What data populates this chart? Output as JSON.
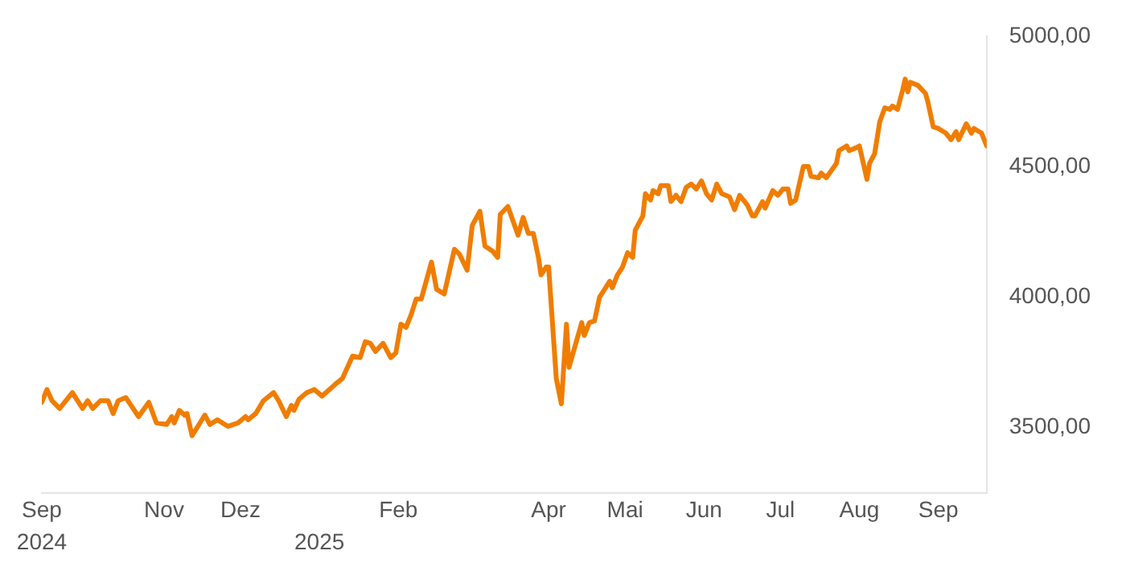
{
  "chart_data": {
    "type": "line",
    "x": [
      "2024-09-14",
      "2024-09-16",
      "2024-09-18",
      "2024-09-21",
      "2024-09-26",
      "2024-09-30",
      "2024-10-02",
      "2024-10-04",
      "2024-10-07",
      "2024-10-10",
      "2024-10-12",
      "2024-10-14",
      "2024-10-17",
      "2024-10-22",
      "2024-10-26",
      "2024-10-29",
      "2024-11-02",
      "2024-11-04",
      "2024-11-05",
      "2024-11-07",
      "2024-11-09",
      "2024-11-10",
      "2024-11-12",
      "2024-11-17",
      "2024-11-19",
      "2024-11-22",
      "2024-11-26",
      "2024-11-30",
      "2024-12-03",
      "2024-12-04",
      "2024-12-07",
      "2024-12-10",
      "2024-12-14",
      "2024-12-16",
      "2024-12-19",
      "2024-12-21",
      "2024-12-22",
      "2024-12-24",
      "2024-12-27",
      "2024-12-30",
      "2025-01-02",
      "2025-01-07",
      "2025-01-10",
      "2025-01-14",
      "2025-01-17",
      "2025-01-19",
      "2025-01-21",
      "2025-01-23",
      "2025-01-26",
      "2025-01-29",
      "2025-01-31",
      "2025-02-02",
      "2025-02-04",
      "2025-02-06",
      "2025-02-08",
      "2025-02-10",
      "2025-02-14",
      "2025-02-16",
      "2025-02-19",
      "2025-02-23",
      "2025-02-25",
      "2025-02-28",
      "2025-03-02",
      "2025-03-05",
      "2025-03-07",
      "2025-03-10",
      "2025-03-12",
      "2025-03-13",
      "2025-03-16",
      "2025-03-20",
      "2025-03-22",
      "2025-03-24",
      "2025-03-26",
      "2025-03-28",
      "2025-03-29",
      "2025-03-31",
      "2025-04-01",
      "2025-04-04",
      "2025-04-06",
      "2025-04-08",
      "2025-04-09",
      "2025-04-14",
      "2025-04-15",
      "2025-04-17",
      "2025-04-19",
      "2025-04-21",
      "2025-04-23",
      "2025-04-25",
      "2025-04-26",
      "2025-04-28",
      "2025-04-30",
      "2025-05-02",
      "2025-05-04",
      "2025-05-05",
      "2025-05-08",
      "2025-05-09",
      "2025-05-11",
      "2025-05-12",
      "2025-05-14",
      "2025-05-15",
      "2025-05-18",
      "2025-05-19",
      "2025-05-21",
      "2025-05-23",
      "2025-05-25",
      "2025-05-27",
      "2025-05-29",
      "2025-05-31",
      "2025-06-02",
      "2025-06-04",
      "2025-06-06",
      "2025-06-08",
      "2025-06-11",
      "2025-06-13",
      "2025-06-15",
      "2025-06-18",
      "2025-06-20",
      "2025-06-21",
      "2025-06-24",
      "2025-06-25",
      "2025-06-28",
      "2025-06-30",
      "2025-07-02",
      "2025-07-04",
      "2025-07-05",
      "2025-07-07",
      "2025-07-10",
      "2025-07-12",
      "2025-07-13",
      "2025-07-16",
      "2025-07-17",
      "2025-07-19",
      "2025-07-23",
      "2025-07-24",
      "2025-07-27",
      "2025-07-28",
      "2025-07-31",
      "2025-08-01",
      "2025-08-04",
      "2025-08-05",
      "2025-08-07",
      "2025-08-09",
      "2025-08-11",
      "2025-08-13",
      "2025-08-14",
      "2025-08-16",
      "2025-08-18",
      "2025-08-19",
      "2025-08-20",
      "2025-08-21",
      "2025-08-24",
      "2025-08-27",
      "2025-08-28",
      "2025-08-30",
      "2025-09-01",
      "2025-09-04",
      "2025-09-06",
      "2025-09-08",
      "2025-09-09",
      "2025-09-12",
      "2025-09-14",
      "2025-09-15",
      "2025-09-18",
      "2025-09-20"
    ],
    "series": [
      {
        "color": "#f07d00",
        "values": [
          3597,
          3646,
          3603,
          3573,
          3634,
          3573,
          3603,
          3573,
          3603,
          3603,
          3554,
          3603,
          3615,
          3542,
          3597,
          3518,
          3512,
          3542,
          3518,
          3566,
          3548,
          3554,
          3469,
          3548,
          3512,
          3530,
          3505,
          3518,
          3542,
          3530,
          3554,
          3603,
          3634,
          3603,
          3542,
          3585,
          3566,
          3609,
          3634,
          3646,
          3621,
          3664,
          3688,
          3774,
          3768,
          3829,
          3823,
          3792,
          3823,
          3768,
          3786,
          3896,
          3884,
          3932,
          3993,
          3993,
          4134,
          4030,
          4012,
          4183,
          4164,
          4103,
          4274,
          4329,
          4195,
          4176,
          4152,
          4317,
          4347,
          4237,
          4305,
          4244,
          4244,
          4152,
          4085,
          4115,
          4115,
          3688,
          3591,
          3896,
          3731,
          3902,
          3853,
          3902,
          3908,
          4000,
          4030,
          4061,
          4036,
          4085,
          4115,
          4170,
          4152,
          4256,
          4311,
          4396,
          4372,
          4408,
          4396,
          4427,
          4427,
          4366,
          4390,
          4366,
          4420,
          4433,
          4414,
          4445,
          4396,
          4372,
          4433,
          4396,
          4384,
          4335,
          4390,
          4353,
          4311,
          4311,
          4366,
          4341,
          4408,
          4390,
          4414,
          4414,
          4359,
          4372,
          4500,
          4500,
          4463,
          4457,
          4475,
          4457,
          4512,
          4561,
          4579,
          4561,
          4573,
          4579,
          4451,
          4512,
          4549,
          4671,
          4725,
          4719,
          4732,
          4719,
          4793,
          4835,
          4786,
          4823,
          4811,
          4780,
          4744,
          4652,
          4646,
          4628,
          4603,
          4634,
          4603,
          4664,
          4628,
          4646,
          4628,
          4579
        ]
      }
    ],
    "xlim": [
      "2024-09-14",
      "2025-09-20"
    ],
    "xticks": [
      {
        "value": "2024-09-14",
        "label": "Sep"
      },
      {
        "value": "2024-11-01",
        "label": "Nov"
      },
      {
        "value": "2024-12-01",
        "label": "Dez"
      },
      {
        "value": "2025-02-01",
        "label": "Feb"
      },
      {
        "value": "2025-04-01",
        "label": "Apr"
      },
      {
        "value": "2025-05-01",
        "label": "Mai"
      },
      {
        "value": "2025-06-01",
        "label": "Jun"
      },
      {
        "value": "2025-07-01",
        "label": "Jul"
      },
      {
        "value": "2025-08-01",
        "label": "Aug"
      },
      {
        "value": "2025-09-01",
        "label": "Sep"
      }
    ],
    "x2lim": [
      "2024-09-14",
      "2025-09-20"
    ],
    "x2ticks": [
      {
        "value": "2024-09-14",
        "label": "2024"
      },
      {
        "value": "2025-01-01",
        "label": "2025"
      }
    ],
    "ylim": [
      3250,
      5000
    ],
    "yticks": [
      {
        "value": 3500,
        "label": "3500,00"
      },
      {
        "value": 4000,
        "label": "4000,00"
      },
      {
        "value": 4500,
        "label": "4500,00"
      },
      {
        "value": 5000,
        "label": "5000,00"
      }
    ],
    "grid": false,
    "legend": false,
    "marker": "none",
    "line_style": "solid"
  }
}
